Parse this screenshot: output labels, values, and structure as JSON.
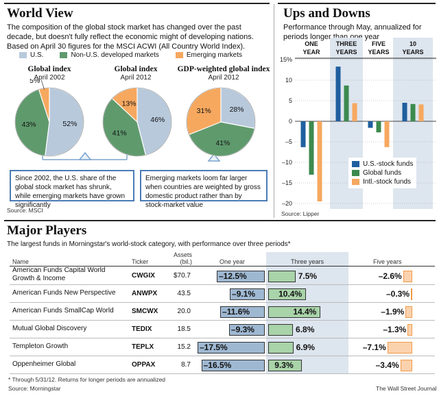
{
  "world_view": {
    "title": "World View",
    "intro": "The composition of the global stock market has changed over the past decade, but doesn't fully reflect the economic might of developing nations. Based on April 30 figures for the MSCI ACWI (All Country World Index).",
    "legend": [
      {
        "label": "U.S.",
        "color": "#b8c9dc"
      },
      {
        "label": "Non-U.S. developed markets",
        "color": "#5f9a6d"
      },
      {
        "label": "Emerging markets",
        "color": "#f6a85f"
      }
    ],
    "callout_left": "Since 2002, the U.S. share of the global stock market has shrunk, while emerging markets have grown significantly",
    "callout_right": "Emerging markets loom far larger when countries are weighted by gross domestic product rather than by stock-market value",
    "source": "Source: MSCI"
  },
  "ups_downs": {
    "title": "Ups and Downs",
    "subtitle": "Performance through May, annualized for periods longer than one year",
    "periods": [
      "ONE YEAR",
      "THREE YEARS",
      "FIVE YEARS",
      "10 YEARS"
    ],
    "legend": [
      {
        "label": "U.S.-stock funds",
        "color": "#1f5f9f"
      },
      {
        "label": "Global funds",
        "color": "#3c8a4e"
      },
      {
        "label": "Intl.-stock funds",
        "color": "#f6a85f"
      }
    ],
    "source": "Source: Lipper"
  },
  "major_players": {
    "title": "Major Players",
    "subtitle": "The largest funds in Morningstar's world-stock category, with performance over three periods*",
    "headers": {
      "name": "Name",
      "ticker": "Ticker",
      "assets": "Assets (bil.)",
      "one_year": "One year",
      "three_years": "Three years",
      "five_years": "Five years"
    },
    "rows": [
      {
        "name": "American Funds Capital World Growth & Income",
        "ticker": "CWGIX",
        "assets": "$70.7",
        "one_label": "–12.5%",
        "three_label": "7.5%",
        "five_label": "–2.6%"
      },
      {
        "name": "American Funds New Perspective",
        "ticker": "ANWPX",
        "assets": "43.5",
        "one_label": "–9.1%",
        "three_label": "10.4%",
        "five_label": "–0.3%"
      },
      {
        "name": "American Funds SmallCap World",
        "ticker": "SMCWX",
        "assets": "20.0",
        "one_label": "–11.6%",
        "three_label": "14.4%",
        "five_label": "–1.9%"
      },
      {
        "name": "Mutual Global Discovery",
        "ticker": "TEDIX",
        "assets": "18.5",
        "one_label": "–9.3%",
        "three_label": "6.8%",
        "five_label": "–1.3%"
      },
      {
        "name": "Templeton Growth",
        "ticker": "TEPLX",
        "assets": "15.2",
        "one_label": "–17.5%",
        "three_label": "6.9%",
        "five_label": "–7.1%"
      },
      {
        "name": "Oppenheimer Global",
        "ticker": "OPPAX",
        "assets": "8.7",
        "one_label": "–16.5%",
        "three_label": "9.3%",
        "five_label": "–3.4%"
      }
    ],
    "footnote": "* Through 5/31/12. Returns for longer periods are annualized",
    "source": "Source: Morningstar",
    "credit": "The Wall Street Journal"
  },
  "chart_data": [
    {
      "type": "pie",
      "title": "Global index",
      "subtitle": "April 2002",
      "categories": [
        "U.S.",
        "Non-U.S. developed markets",
        "Emerging markets"
      ],
      "values": [
        52,
        43,
        5
      ],
      "labels": [
        "52%",
        "43%",
        "5%"
      ],
      "colors": [
        "#b8c9dc",
        "#5f9a6d",
        "#f6a85f"
      ]
    },
    {
      "type": "pie",
      "title": "Global index",
      "subtitle": "April 2012",
      "categories": [
        "U.S.",
        "Non-U.S. developed markets",
        "Emerging markets"
      ],
      "values": [
        46,
        41,
        13
      ],
      "labels": [
        "46%",
        "41%",
        "13%"
      ],
      "colors": [
        "#b8c9dc",
        "#5f9a6d",
        "#f6a85f"
      ]
    },
    {
      "type": "pie",
      "title": "GDP-weighted global index",
      "subtitle": "April 2012",
      "categories": [
        "U.S.",
        "Non-U.S. developed markets",
        "Emerging markets"
      ],
      "values": [
        28,
        41,
        31
      ],
      "labels": [
        "28%",
        "41%",
        "31%"
      ],
      "colors": [
        "#b8c9dc",
        "#5f9a6d",
        "#f6a85f"
      ]
    },
    {
      "type": "bar",
      "title": "Ups and Downs",
      "categories": [
        "ONE YEAR",
        "THREE YEARS",
        "FIVE YEARS",
        "10 YEARS"
      ],
      "series": [
        {
          "name": "U.S.-stock funds",
          "values": [
            -6.3,
            13.3,
            -1.6,
            4.5
          ]
        },
        {
          "name": "Global funds",
          "values": [
            -13.0,
            8.7,
            -2.7,
            4.2
          ]
        },
        {
          "name": "Intl.-stock funds",
          "values": [
            -19.5,
            4.4,
            -6.3,
            4.1
          ]
        }
      ],
      "ylim": [
        -20,
        15
      ],
      "yticks": [
        15,
        10,
        5,
        0,
        -5,
        -10,
        -15,
        -20
      ],
      "ytick_labels": [
        "15%",
        "10",
        "5",
        "0",
        "–5",
        "–10",
        "–15",
        "–20"
      ],
      "legend_position": "bottom-right"
    },
    {
      "type": "bar",
      "title": "Major Players",
      "categories": [
        "CWGIX",
        "ANWPX",
        "SMCWX",
        "TEDIX",
        "TEPLX",
        "OPPAX"
      ],
      "series": [
        {
          "name": "One year",
          "values": [
            -12.5,
            -9.1,
            -11.6,
            -9.3,
            -17.5,
            -16.5
          ]
        },
        {
          "name": "Three years",
          "values": [
            7.5,
            10.4,
            14.4,
            6.8,
            6.9,
            9.3
          ]
        },
        {
          "name": "Five years",
          "values": [
            -2.6,
            -0.3,
            -1.9,
            -1.3,
            -7.1,
            -3.4
          ]
        }
      ]
    }
  ]
}
